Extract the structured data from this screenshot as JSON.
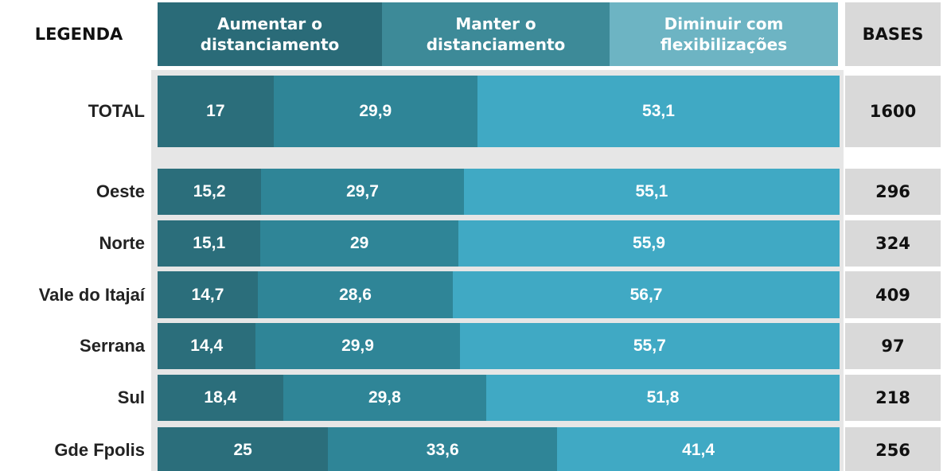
{
  "chart_data": {
    "type": "bar",
    "orientation": "horizontal",
    "stacked": true,
    "legend_title": "LEGENDA",
    "categories": [
      "TOTAL",
      "Oeste",
      "Norte",
      "Vale do Itajaí",
      "Serrana",
      "Sul",
      "Gde Fpolis"
    ],
    "series": [
      {
        "name": "Aumentar o distanciamento",
        "color": "#2b6e7b",
        "legend_color": "#2a6b78",
        "values": [
          17,
          15.2,
          15.1,
          14.7,
          14.4,
          18.4,
          25
        ],
        "value_labels": [
          "17",
          "15,2",
          "15,1",
          "14,7",
          "14,4",
          "18,4",
          "25"
        ]
      },
      {
        "name": "Manter o distanciamento",
        "color": "#2f8597",
        "legend_color": "#3d8a98",
        "values": [
          29.9,
          29.7,
          29,
          28.6,
          29.9,
          29.8,
          33.6
        ],
        "value_labels": [
          "29,9",
          "29,7",
          "29",
          "28,6",
          "29,9",
          "29,8",
          "33,6"
        ]
      },
      {
        "name": "Diminuir com flexibilizações",
        "color": "#40a9c4",
        "legend_color": "#6db4c3",
        "values": [
          53.1,
          55.1,
          55.9,
          56.7,
          55.7,
          51.8,
          41.4
        ],
        "value_labels": [
          "53,1",
          "55,1",
          "55,9",
          "56,7",
          "55,7",
          "51,8",
          "41,4"
        ]
      }
    ],
    "bases": {
      "title": "BASES",
      "values": [
        1600,
        296,
        324,
        409,
        97,
        218,
        256
      ]
    }
  }
}
